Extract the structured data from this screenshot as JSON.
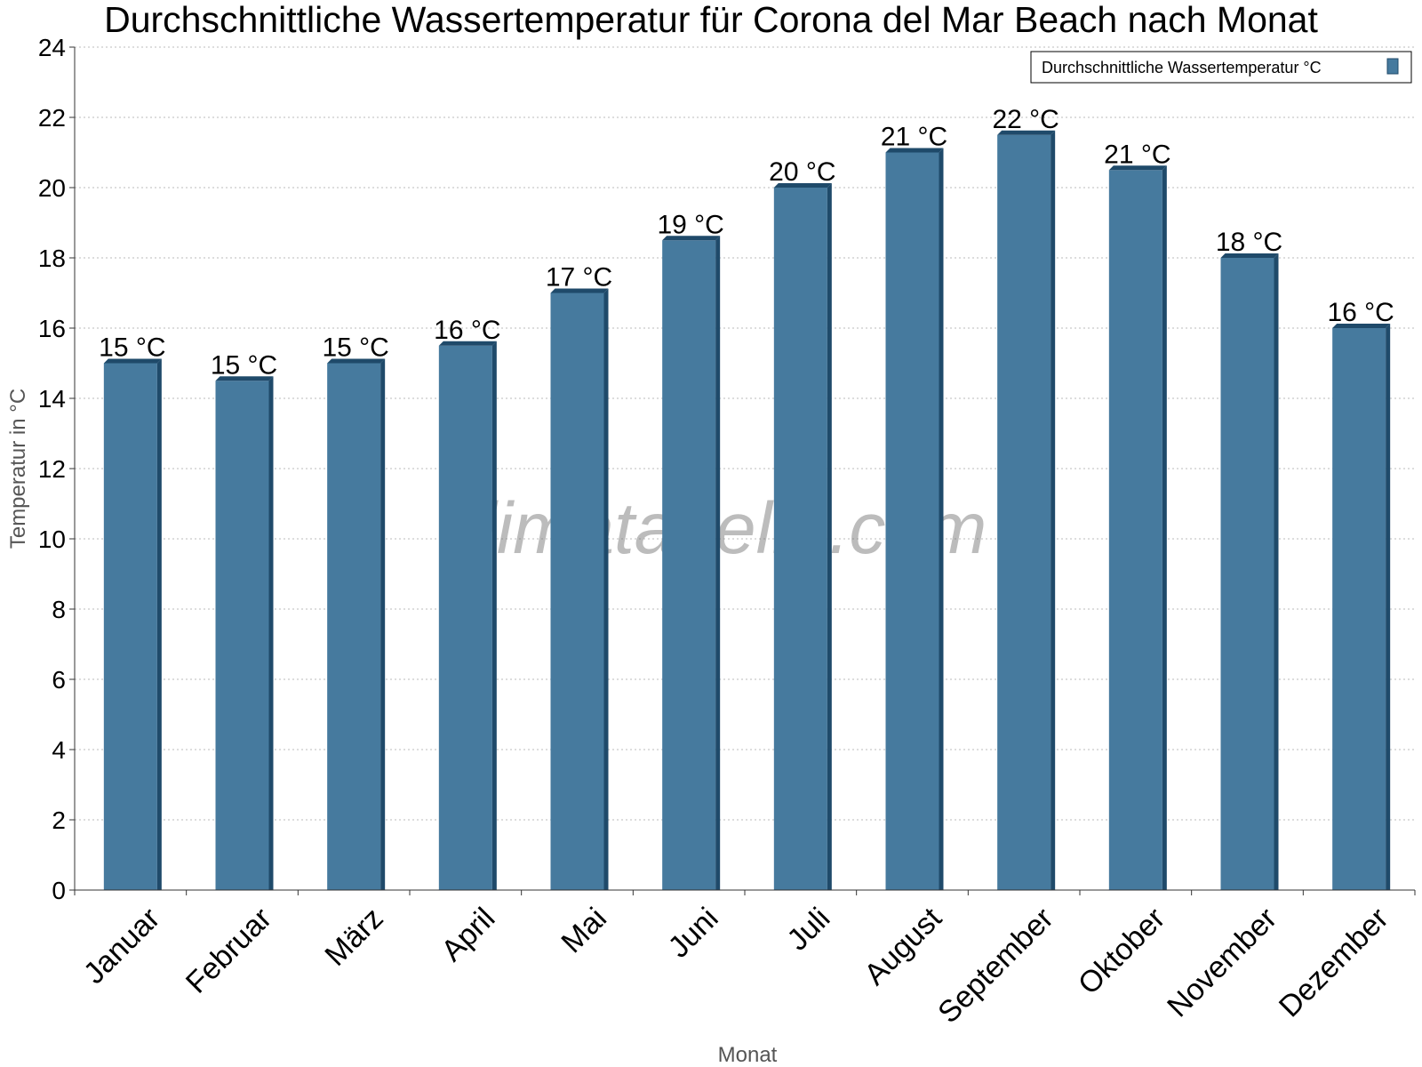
{
  "chart_data": {
    "type": "bar",
    "title": "Durchschnittliche Wassertemperatur für Corona del Mar Beach nach Monat",
    "xlabel": "Monat",
    "ylabel": "Temperatur in °C",
    "categories": [
      "Januar",
      "Februar",
      "März",
      "April",
      "Mai",
      "Juni",
      "Juli",
      "August",
      "September",
      "Oktober",
      "November",
      "Dezember"
    ],
    "series": [
      {
        "name": "Durchschnittliche Wassertemperatur °C",
        "values": [
          15.0,
          14.5,
          15.0,
          15.5,
          17.0,
          18.5,
          20.0,
          21.0,
          21.5,
          20.5,
          18.0,
          16.0
        ],
        "labels": [
          "15 °C",
          "15 °C",
          "15 °C",
          "16 °C",
          "17 °C",
          "19 °C",
          "20 °C",
          "21 °C",
          "22 °C",
          "21 °C",
          "18 °C",
          "16 °C"
        ]
      }
    ],
    "ylim": [
      0,
      24
    ],
    "yticks": [
      0,
      2,
      4,
      6,
      8,
      10,
      12,
      14,
      16,
      18,
      20,
      22,
      24
    ],
    "grid": true,
    "legend_position": "top-right",
    "colors": {
      "bar": "#467a9e",
      "bar_side": "#1f4a6a",
      "grid": "#bbbbbb"
    },
    "watermark": "klimatabelle.com"
  }
}
